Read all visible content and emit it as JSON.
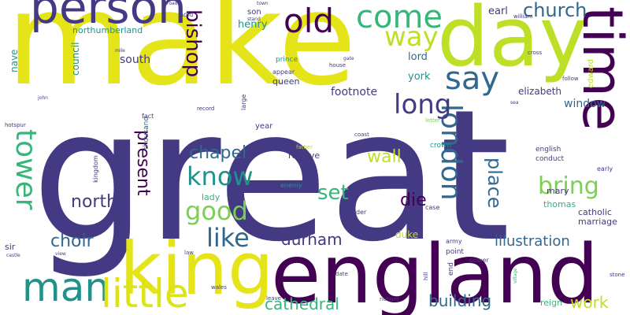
{
  "palette": {
    "background": "#ffffff",
    "dark_indigo": "#440154",
    "indigo": "#443a83",
    "blue": "#31688e",
    "teal": "#21918c",
    "green_teal": "#35b779",
    "green": "#7ad151",
    "lime": "#bddf26",
    "yellow": "#fde725"
  },
  "words": [
    "great",
    "make",
    "england",
    "king",
    "day",
    "time",
    "person",
    "man",
    "little",
    "old",
    "come",
    "say",
    "way",
    "london",
    "tower",
    "long",
    "know",
    "like",
    "good",
    "bring",
    "set",
    "bishop",
    "church",
    "present",
    "place",
    "die",
    "chapel",
    "wall",
    "choir",
    "north",
    "durham",
    "cathedral",
    "building",
    "work",
    "illustration",
    "south",
    "footnote",
    "window",
    "elizabeth",
    "lord",
    "york",
    "earl",
    "henry",
    "son",
    "northumberland",
    "council",
    "queen",
    "nave",
    "duke",
    "catholic",
    "marriage",
    "edward",
    "thomas",
    "receive",
    "jane",
    "crown",
    "mary",
    "lady",
    "sir",
    "reign",
    "end",
    "point",
    "power",
    "army",
    "english",
    "conduct",
    "early",
    "case",
    "order",
    "enemy",
    "father",
    "kingdom",
    "thousand",
    "year",
    "coast",
    "letter",
    "fact",
    "large",
    "record",
    "house",
    "prince",
    "appear",
    "hold",
    "william",
    "cross",
    "follow",
    "mile",
    "road",
    "stand",
    "hotspur",
    "john",
    "far",
    "view",
    "castle",
    "law",
    "richard",
    "leave",
    "wales",
    "date",
    "hill",
    "village",
    "stone",
    "town",
    "sea",
    "gate"
  ]
}
